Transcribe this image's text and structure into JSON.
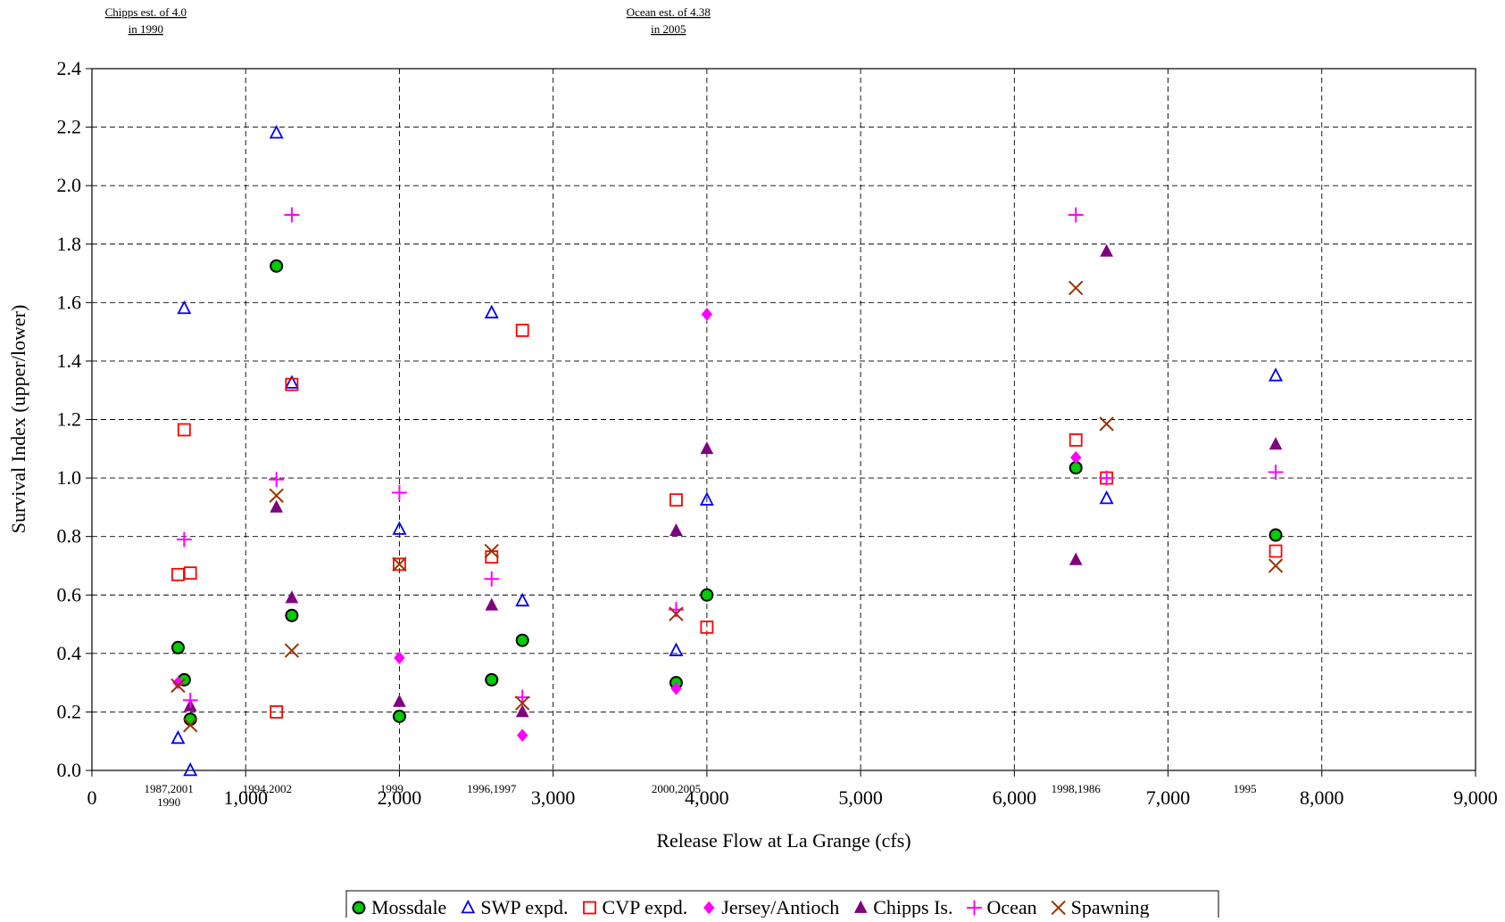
{
  "chart_data": {
    "type": "scatter",
    "title": "",
    "xlabel": "Release Flow at La Grange (cfs)",
    "ylabel": "Survival Index (upper/lower)",
    "xlim": [
      0,
      9000
    ],
    "ylim": [
      0,
      2.4
    ],
    "x_ticks": [
      {
        "value": 0,
        "label": "0"
      },
      {
        "value": 1000,
        "label": "1,000"
      },
      {
        "value": 2000,
        "label": "2,000"
      },
      {
        "value": 3000,
        "label": "3,000"
      },
      {
        "value": 4000,
        "label": "4,000"
      },
      {
        "value": 5000,
        "label": "5,000"
      },
      {
        "value": 6000,
        "label": "6,000"
      },
      {
        "value": 7000,
        "label": "7,000"
      },
      {
        "value": 8000,
        "label": "8,000"
      },
      {
        "value": 9000,
        "label": "9,000"
      }
    ],
    "y_ticks": [
      {
        "value": 0,
        "label": "0.0"
      },
      {
        "value": 0.2,
        "label": "0.2"
      },
      {
        "value": 0.4,
        "label": "0.4"
      },
      {
        "value": 0.6,
        "label": "0.6"
      },
      {
        "value": 0.8,
        "label": "0.8"
      },
      {
        "value": 1.0,
        "label": "1.0"
      },
      {
        "value": 1.2,
        "label": "1.2"
      },
      {
        "value": 1.4,
        "label": "1.4"
      },
      {
        "value": 1.6,
        "label": "1.6"
      },
      {
        "value": 1.8,
        "label": "1.8"
      },
      {
        "value": 2.0,
        "label": "2.0"
      },
      {
        "value": 2.2,
        "label": "2.2"
      },
      {
        "value": 2.4,
        "label": "2.4"
      }
    ],
    "grid": true,
    "legend_position": "bottom-center",
    "series": [
      {
        "name": "Mossdale",
        "marker": "circle",
        "color": "#00cc00",
        "edge": "#000000",
        "points": [
          [
            560,
            0.42
          ],
          [
            600,
            0.31
          ],
          [
            640,
            0.175
          ],
          [
            1200,
            1.725
          ],
          [
            1300,
            0.53
          ],
          [
            2000,
            0.185
          ],
          [
            2600,
            0.31
          ],
          [
            2800,
            0.445
          ],
          [
            3800,
            0.3
          ],
          [
            4000,
            0.6
          ],
          [
            6400,
            1.035
          ],
          [
            7700,
            0.805
          ]
        ]
      },
      {
        "name": "SWP expd.",
        "marker": "triangle-open",
        "color": "#0000ee",
        "points": [
          [
            560,
            0.11
          ],
          [
            600,
            1.58
          ],
          [
            640,
            0.0
          ],
          [
            1200,
            2.18
          ],
          [
            1300,
            1.325
          ],
          [
            2000,
            0.825
          ],
          [
            2600,
            1.565
          ],
          [
            2800,
            0.58
          ],
          [
            3800,
            0.41
          ],
          [
            4000,
            0.925
          ],
          [
            6600,
            0.93
          ],
          [
            7700,
            1.35
          ]
        ]
      },
      {
        "name": "CVP expd.",
        "marker": "square-open",
        "color": "#ff0000",
        "points": [
          [
            560,
            0.67
          ],
          [
            600,
            1.165
          ],
          [
            640,
            0.675
          ],
          [
            1200,
            0.2
          ],
          [
            1300,
            1.32
          ],
          [
            2000,
            0.705
          ],
          [
            2600,
            0.73
          ],
          [
            2800,
            1.505
          ],
          [
            3800,
            0.925
          ],
          [
            4000,
            0.49
          ],
          [
            6400,
            1.13
          ],
          [
            6600,
            1.0
          ],
          [
            7700,
            0.75
          ]
        ]
      },
      {
        "name": "Jersey/Antioch",
        "marker": "diamond",
        "color": "#ff00ff",
        "points": [
          [
            560,
            0.3
          ],
          [
            2000,
            0.385
          ],
          [
            2800,
            0.12
          ],
          [
            3800,
            0.28
          ],
          [
            4000,
            1.56
          ],
          [
            6400,
            1.07
          ]
        ]
      },
      {
        "name": "Chipps Is.",
        "marker": "triangle",
        "color": "#800080",
        "points": [
          [
            640,
            0.22
          ],
          [
            1200,
            0.9
          ],
          [
            1300,
            0.59
          ],
          [
            2000,
            0.235
          ],
          [
            2600,
            0.565
          ],
          [
            2800,
            0.2
          ],
          [
            3800,
            0.82
          ],
          [
            4000,
            1.1
          ],
          [
            6400,
            0.72
          ],
          [
            6600,
            1.775
          ],
          [
            7700,
            1.115
          ]
        ]
      },
      {
        "name": "Ocean",
        "marker": "plus",
        "color": "#ff00ff",
        "points": [
          [
            600,
            0.79
          ],
          [
            640,
            0.24
          ],
          [
            1200,
            0.995
          ],
          [
            1300,
            1.9
          ],
          [
            2000,
            0.95
          ],
          [
            2600,
            0.655
          ],
          [
            2800,
            0.25
          ],
          [
            3800,
            0.55
          ],
          [
            6400,
            1.9
          ],
          [
            6600,
            1.0
          ],
          [
            7700,
            1.02
          ]
        ]
      },
      {
        "name": "Spawning",
        "marker": "x",
        "color": "#993300",
        "points": [
          [
            560,
            0.29
          ],
          [
            640,
            0.155
          ],
          [
            1200,
            0.94
          ],
          [
            1300,
            0.41
          ],
          [
            2000,
            0.705
          ],
          [
            2600,
            0.75
          ],
          [
            2800,
            0.23
          ],
          [
            3800,
            0.535
          ],
          [
            6400,
            1.65
          ],
          [
            6600,
            1.185
          ],
          [
            7700,
            0.7
          ]
        ]
      }
    ],
    "year_annotations": [
      {
        "x": 500,
        "lines": [
          "1987,2001",
          "1990"
        ]
      },
      {
        "x": 1140,
        "lines": [
          "1994,2002"
        ]
      },
      {
        "x": 1950,
        "lines": [
          "1999"
        ]
      },
      {
        "x": 2600,
        "lines": [
          "1996,1997"
        ]
      },
      {
        "x": 3800,
        "lines": [
          "2000,2005"
        ]
      },
      {
        "x": 6400,
        "lines": [
          "1998,1986"
        ]
      },
      {
        "x": 7500,
        "lines": [
          "1995"
        ]
      }
    ],
    "top_notes": [
      {
        "x": 350,
        "lines": [
          "Chipps est. of 4.0",
          "in 1990"
        ]
      },
      {
        "x": 3750,
        "lines": [
          "Ocean est. of 4.38",
          "in 2005"
        ]
      }
    ]
  }
}
